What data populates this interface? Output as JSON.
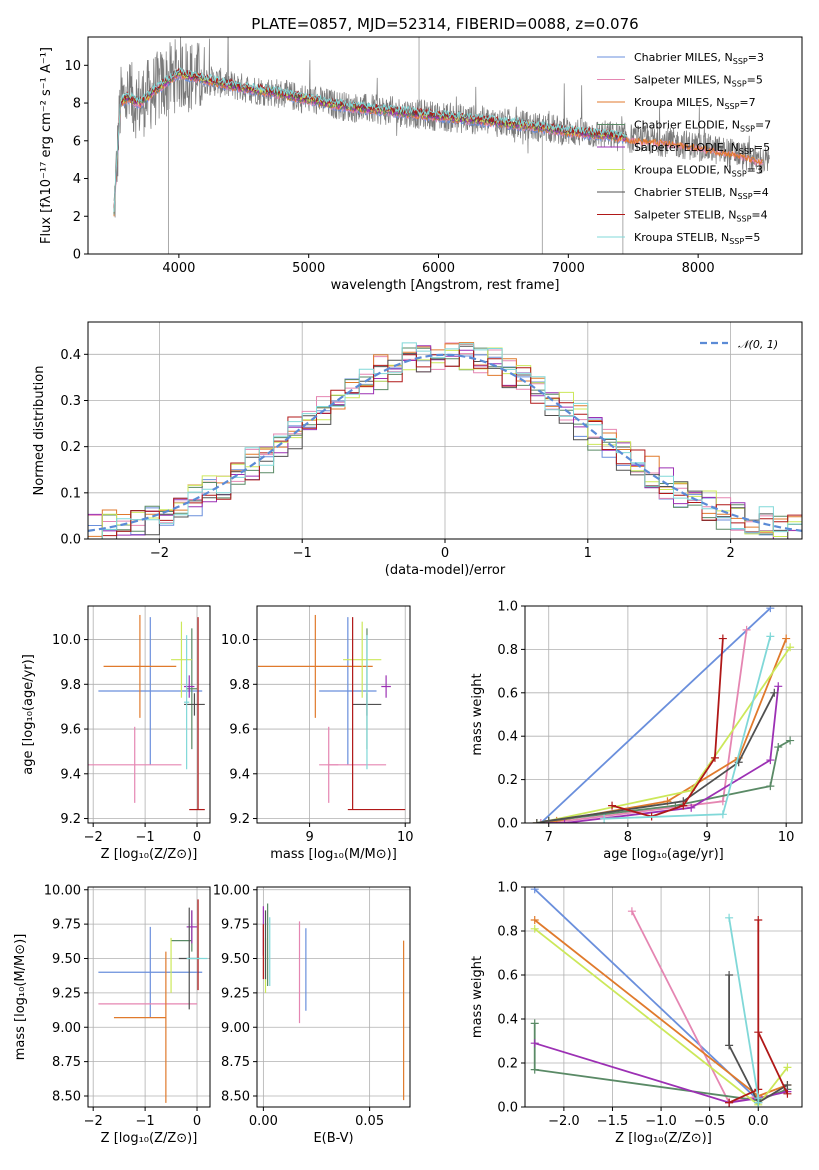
{
  "colors": {
    "Chabrier MILES": "#6a8fdc",
    "Salpeter MILES": "#e586b2",
    "Kroupa MILES": "#e07a2c",
    "Chabrier ELODIE": "#5a8a66",
    "Salpeter ELODIE": "#9c30b4",
    "Kroupa ELODIE": "#cce85a",
    "Chabrier STELIB": "#505050",
    "Salpeter STELIB": "#b01818",
    "Kroupa STELIB": "#80d8d8"
  },
  "chart_data": [
    {
      "id": "spectrum",
      "type": "line",
      "title": "PLATE=0857, MJD=52314, FIBERID=0088, z=0.076",
      "xlabel": "wavelength [Angstrom, rest frame]",
      "ylabel": "Flux [fλ10⁻¹⁷ erg cm⁻² s⁻¹ A⁻¹]",
      "xlim": [
        3300,
        8800
      ],
      "ylim": [
        0,
        11.5
      ],
      "xticks": [
        4000,
        5000,
        6000,
        7000,
        8000
      ],
      "yticks": [
        0,
        2,
        4,
        6,
        8,
        10
      ],
      "legend_position": "top-right",
      "legend": [
        {
          "name": "Chabrier MILES",
          "nssp": "3"
        },
        {
          "name": "Salpeter MILES",
          "nssp": "5"
        },
        {
          "name": "Kroupa MILES",
          "nssp": "7"
        },
        {
          "name": "Chabrier ELODIE",
          "nssp": "7"
        },
        {
          "name": "Salpeter ELODIE",
          "nssp": "5"
        },
        {
          "name": "Kroupa ELODIE",
          "nssp": "3"
        },
        {
          "name": "Chabrier STELIB",
          "nssp": "4"
        },
        {
          "name": "Salpeter STELIB",
          "nssp": "4"
        },
        {
          "name": "Kroupa STELIB",
          "nssp": "5"
        }
      ],
      "continuum": {
        "x": [
          3500,
          3550,
          3600,
          3700,
          3800,
          3900,
          4000,
          4100,
          4300,
          4500,
          4700,
          5000,
          5300,
          5600,
          6000,
          6300,
          6560,
          6800,
          7000,
          7300,
          7500,
          7800,
          8000,
          8300,
          8500
        ],
        "y": [
          2.2,
          8.0,
          8.3,
          8.0,
          8.6,
          9.1,
          9.6,
          9.4,
          9.1,
          8.8,
          8.6,
          8.2,
          7.8,
          7.6,
          7.3,
          7.1,
          6.9,
          6.7,
          6.5,
          6.3,
          6.1,
          5.9,
          5.7,
          5.3,
          4.9
        ]
      }
    },
    {
      "id": "residuals",
      "type": "histogram",
      "xlabel": "(data-model)/error",
      "ylabel": "Normed distribution",
      "xlim": [
        -2.5,
        2.5
      ],
      "ylim": [
        0,
        0.47
      ],
      "xticks": [
        -2,
        -1,
        0,
        1,
        2
      ],
      "yticks": [
        0.0,
        0.1,
        0.2,
        0.3,
        0.4
      ],
      "grid": true,
      "reference_curve": {
        "name": "𝒩(0, 1)",
        "style": "dashed",
        "color": "#5b8bd6"
      },
      "legend_position": "top-right"
    },
    {
      "id": "age-vs-Z",
      "type": "errorbar",
      "xlabel": "Z [log₁₀(Z/Z⊙)]",
      "ylabel": "age  [log₁₀(age/yr)]",
      "xlim": [
        -2.1,
        0.25
      ],
      "ylim": [
        9.18,
        10.15
      ],
      "xticks": [
        -2,
        -1,
        0
      ],
      "yticks": [
        9.2,
        9.4,
        9.6,
        9.8,
        10.0
      ],
      "grid": true,
      "points": [
        {
          "name": "Chabrier MILES",
          "x": -0.9,
          "xerr": 1.0,
          "y": 9.77,
          "yerr": 0.33
        },
        {
          "name": "Salpeter MILES",
          "x": -1.2,
          "xerr": 0.9,
          "y": 9.44,
          "yerr": 0.17
        },
        {
          "name": "Kroupa MILES",
          "x": -1.1,
          "xerr": 0.7,
          "y": 9.88,
          "yerr": 0.23
        },
        {
          "name": "Chabrier ELODIE",
          "x": -0.1,
          "xerr": 0.1,
          "y": 9.78,
          "yerr": 0.27
        },
        {
          "name": "Salpeter ELODIE",
          "x": -0.15,
          "xerr": 0.1,
          "y": 9.79,
          "yerr": 0.05
        },
        {
          "name": "Kroupa ELODIE",
          "x": -0.3,
          "xerr": 0.2,
          "y": 9.91,
          "yerr": 0.17
        },
        {
          "name": "Chabrier STELIB",
          "x": -0.05,
          "xerr": 0.2,
          "y": 9.71,
          "yerr": 0.05
        },
        {
          "name": "Salpeter STELIB",
          "x": 0.0,
          "xerr": 0.15,
          "y": 9.24,
          "yerr": 0.0
        },
        {
          "name": "Salpeter STELIB",
          "x": 0.02,
          "xerr": 0.0,
          "y": 9.67,
          "yerr": 0.43
        },
        {
          "name": "Kroupa STELIB",
          "x": -0.2,
          "xerr": 0.05,
          "y": 9.72,
          "yerr": 0.3
        }
      ]
    },
    {
      "id": "age-vs-mass",
      "type": "errorbar",
      "xlabel": "mass [log₁₀(M/M⊙)]",
      "xlim": [
        8.45,
        10.05
      ],
      "ylim": [
        9.18,
        10.15
      ],
      "xticks": [
        9,
        10
      ],
      "yticks": [
        9.2,
        9.4,
        9.6,
        9.8,
        10.0
      ],
      "grid": true,
      "points": [
        {
          "name": "Chabrier MILES",
          "x": 9.4,
          "xerr": 0.3,
          "y": 9.77,
          "yerr": 0.33
        },
        {
          "name": "Salpeter MILES",
          "x": 9.2,
          "xerr": 0.1,
          "y": 9.44,
          "yerr": 0.17
        },
        {
          "name": "Salpeter MILES",
          "x": 9.2,
          "xerr": 0.0,
          "y": 9.44,
          "yerr": 0.0
        },
        {
          "name": "Salpeter MILES",
          "x": 9.5,
          "xerr": 0.3,
          "y": 9.44,
          "yerr": 0.0
        },
        {
          "name": "Kroupa MILES",
          "x": 9.06,
          "xerr": 0.6,
          "y": 9.88,
          "yerr": 0.23
        },
        {
          "name": "Chabrier ELODIE",
          "x": 9.6,
          "xerr": 0.0,
          "y": 9.78,
          "yerr": 0.27
        },
        {
          "name": "Salpeter ELODIE",
          "x": 9.8,
          "xerr": 0.05,
          "y": 9.79,
          "yerr": 0.05
        },
        {
          "name": "Kroupa ELODIE",
          "x": 9.55,
          "xerr": 0.2,
          "y": 9.91,
          "yerr": 0.17
        },
        {
          "name": "Chabrier STELIB",
          "x": 9.6,
          "xerr": 0.15,
          "y": 9.71,
          "yerr": 0.05
        },
        {
          "name": "Salpeter STELIB",
          "x": 9.7,
          "xerr": 0.3,
          "y": 9.24,
          "yerr": 0.0
        },
        {
          "name": "Salpeter STELIB",
          "x": 9.45,
          "xerr": 0.0,
          "y": 9.67,
          "yerr": 0.43
        },
        {
          "name": "Kroupa STELIB",
          "x": 9.6,
          "xerr": 0.0,
          "y": 9.72,
          "yerr": 0.3
        }
      ]
    },
    {
      "id": "weight-vs-age",
      "type": "line",
      "xlabel": "age  [log₁₀(age/yr)]",
      "ylabel": "mass weight",
      "xlim": [
        6.7,
        10.2
      ],
      "ylim": [
        0,
        1.0
      ],
      "xticks": [
        7,
        8,
        9,
        10
      ],
      "yticks": [
        0.0,
        0.2,
        0.4,
        0.6,
        0.8,
        1.0
      ],
      "grid": true,
      "series": [
        {
          "name": "Chabrier MILES",
          "x": [
            6.9,
            9.8
          ],
          "y": [
            0.0,
            0.99
          ]
        },
        {
          "name": "Salpeter MILES",
          "x": [
            6.9,
            7.0,
            9.2,
            9.5
          ],
          "y": [
            0.0,
            0.0,
            0.1,
            0.89
          ]
        },
        {
          "name": "Kroupa MILES",
          "x": [
            6.85,
            7.1,
            8.5,
            9.4,
            10.0
          ],
          "y": [
            0.0,
            0.01,
            0.1,
            0.3,
            0.85
          ]
        },
        {
          "name": "Chabrier ELODIE",
          "x": [
            6.85,
            7.0,
            8.6,
            9.8,
            9.9,
            10.05
          ],
          "y": [
            0.0,
            0.01,
            0.08,
            0.17,
            0.35,
            0.38
          ]
        },
        {
          "name": "Salpeter ELODIE",
          "x": [
            6.85,
            7.2,
            8.8,
            9.8,
            9.9
          ],
          "y": [
            0.0,
            0.0,
            0.07,
            0.29,
            0.63
          ]
        },
        {
          "name": "Kroupa ELODIE",
          "x": [
            6.85,
            7.0,
            8.8,
            10.05
          ],
          "y": [
            0.0,
            0.01,
            0.15,
            0.81
          ]
        },
        {
          "name": "Chabrier STELIB",
          "x": [
            6.85,
            7.0,
            8.7,
            9.4,
            9.85
          ],
          "y": [
            0.0,
            0.01,
            0.1,
            0.28,
            0.6
          ]
        },
        {
          "name": "Salpeter STELIB",
          "x": [
            7.8,
            8.3,
            8.7,
            9.1,
            9.2
          ],
          "y": [
            0.08,
            0.03,
            0.08,
            0.3,
            0.85
          ]
        },
        {
          "name": "Kroupa STELIB",
          "x": [
            7.7,
            9.2,
            9.8
          ],
          "y": [
            0.02,
            0.04,
            0.86
          ]
        }
      ]
    },
    {
      "id": "mass-vs-Z",
      "type": "errorbar",
      "xlabel": "Z [log₁₀(Z/Z⊙)]",
      "ylabel": "mass [log₁₀(M/M⊙)]",
      "xlim": [
        -2.1,
        0.25
      ],
      "ylim": [
        8.42,
        10.02
      ],
      "xticks": [
        -2,
        -1,
        0
      ],
      "yticks": [
        8.5,
        8.75,
        9.0,
        9.25,
        9.5,
        9.75,
        10.0
      ],
      "grid": true,
      "points": [
        {
          "name": "Chabrier MILES",
          "x": -0.9,
          "xerr": 1.0,
          "y": 9.4,
          "yerr": 0.33
        },
        {
          "name": "Salpeter MILES",
          "x": -0.95,
          "xerr": 0.95,
          "y": 9.17,
          "yerr": 0.0
        },
        {
          "name": "Salpeter MILES",
          "x": -0.65,
          "xerr": 0.0,
          "y": 9.16,
          "yerr": 0.0
        },
        {
          "name": "Kroupa MILES",
          "x": -1.1,
          "xerr": 0.5,
          "y": 9.07,
          "yerr": 0.0
        },
        {
          "name": "Kroupa MILES",
          "x": -0.6,
          "xerr": 0.0,
          "y": 9.0,
          "yerr": 0.55
        },
        {
          "name": "Chabrier ELODIE",
          "x": -0.3,
          "xerr": 0.2,
          "y": 9.63,
          "yerr": 0.0
        },
        {
          "name": "Chabrier ELODIE",
          "x": -0.1,
          "xerr": 0.0,
          "y": 9.7,
          "yerr": 0.15
        },
        {
          "name": "Salpeter ELODIE",
          "x": -0.1,
          "xerr": 0.1,
          "y": 9.73,
          "yerr": 0.12
        },
        {
          "name": "Kroupa ELODIE",
          "x": -0.5,
          "xerr": 0.0,
          "y": 9.45,
          "yerr": 0.2
        },
        {
          "name": "Chabrier STELIB",
          "x": -0.15,
          "xerr": 0.2,
          "y": 9.5,
          "yerr": 0.37
        },
        {
          "name": "Salpeter STELIB",
          "x": 0.02,
          "xerr": 0.0,
          "y": 9.6,
          "yerr": 0.33
        },
        {
          "name": "Kroupa STELIB",
          "x": 0.0,
          "xerr": 0.2,
          "y": 9.5,
          "yerr": 0.0
        }
      ]
    },
    {
      "id": "mass-vs-EBV",
      "type": "errorbar",
      "xlabel": "E(B-V)",
      "xlim": [
        -0.003,
        0.069
      ],
      "ylim": [
        8.42,
        10.02
      ],
      "xticks": [
        0.0,
        0.05
      ],
      "yticks": [
        8.5,
        8.75,
        9.0,
        9.25,
        9.5,
        9.75,
        10.0
      ],
      "grid": true,
      "points": [
        {
          "name": "Chabrier MILES",
          "x": 0.02,
          "xerr": 0.0,
          "y": 9.42,
          "yerr": 0.3
        },
        {
          "name": "Salpeter MILES",
          "x": 0.017,
          "xerr": 0.0,
          "y": 9.4,
          "yerr": 0.37
        },
        {
          "name": "Kroupa MILES",
          "x": 0.066,
          "xerr": 0.0,
          "y": 9.05,
          "yerr": 0.58
        },
        {
          "name": "Chabrier ELODIE",
          "x": 0.002,
          "xerr": 0.0,
          "y": 9.6,
          "yerr": 0.3
        },
        {
          "name": "Salpeter ELODIE",
          "x": 0.0,
          "xerr": 0.0,
          "y": 9.7,
          "yerr": 0.18
        },
        {
          "name": "Kroupa ELODIE",
          "x": 0.001,
          "xerr": 0.0,
          "y": 9.45,
          "yerr": 0.2
        },
        {
          "name": "Chabrier STELIB",
          "x": 0.001,
          "xerr": 0.0,
          "y": 9.6,
          "yerr": 0.25
        },
        {
          "name": "Salpeter STELIB",
          "x": 0.0,
          "xerr": 0.0,
          "y": 9.55,
          "yerr": 0.2
        },
        {
          "name": "Kroupa STELIB",
          "x": 0.003,
          "xerr": 0.0,
          "y": 9.55,
          "yerr": 0.25
        }
      ]
    },
    {
      "id": "weight-vs-Z",
      "type": "line",
      "xlabel": "Z [log₁₀(Z/Z⊙)]",
      "ylabel": "mass weight",
      "xlim": [
        -2.4,
        0.45
      ],
      "ylim": [
        0,
        1.0
      ],
      "xticks": [
        -2.0,
        -1.5,
        -1.0,
        -0.5,
        0.0
      ],
      "yticks": [
        0.0,
        0.2,
        0.4,
        0.6,
        0.8,
        1.0
      ],
      "grid": true,
      "series": [
        {
          "name": "Chabrier MILES",
          "x": [
            -2.3,
            0.0
          ],
          "y": [
            0.99,
            0.03
          ]
        },
        {
          "name": "Salpeter MILES",
          "x": [
            -1.3,
            -0.3,
            0.0
          ],
          "y": [
            0.89,
            0.02,
            0.05
          ]
        },
        {
          "name": "Kroupa MILES",
          "x": [
            -2.3,
            0.0,
            0.3
          ],
          "y": [
            0.85,
            0.05,
            0.1
          ]
        },
        {
          "name": "Chabrier ELODIE",
          "x": [
            -2.3,
            -2.3,
            0.0,
            0.3
          ],
          "y": [
            0.38,
            0.17,
            0.03,
            0.08
          ]
        },
        {
          "name": "Salpeter ELODIE",
          "x": [
            -2.3,
            -0.3,
            0.0,
            0.3
          ],
          "y": [
            0.29,
            0.02,
            0.04,
            0.07
          ]
        },
        {
          "name": "Kroupa ELODIE",
          "x": [
            -2.3,
            0.0,
            0.3
          ],
          "y": [
            0.81,
            0.01,
            0.18
          ]
        },
        {
          "name": "Chabrier STELIB",
          "x": [
            -0.3,
            -0.3,
            0.0,
            0.3
          ],
          "y": [
            0.6,
            0.28,
            0.02,
            0.1
          ]
        },
        {
          "name": "Salpeter STELIB",
          "x": [
            -0.3,
            0.0,
            0.0,
            0.0,
            0.3
          ],
          "y": [
            0.02,
            0.08,
            0.85,
            0.34,
            0.06
          ]
        },
        {
          "name": "Kroupa STELIB",
          "x": [
            -0.3,
            0.0,
            0.0
          ],
          "y": [
            0.86,
            0.04,
            0.02
          ]
        }
      ]
    }
  ]
}
